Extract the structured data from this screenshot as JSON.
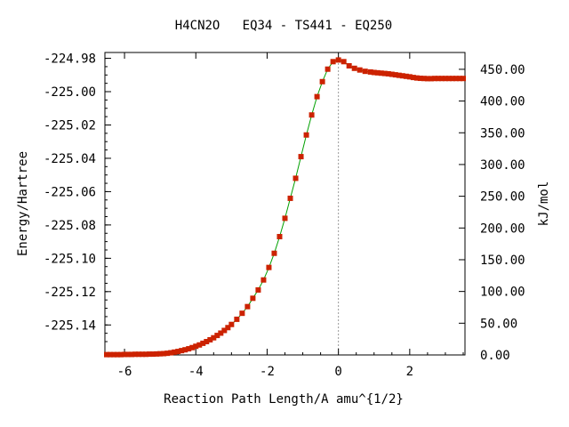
{
  "chart_data": {
    "type": "line",
    "title": "H4CN2O   EQ34 - TS441 - EQ250",
    "xlabel": "Reaction Path Length/A amu^{1/2}",
    "ylabel": "Energy/Hartree",
    "y2label": "kJ/mol",
    "xlim": [
      -6.55,
      3.55
    ],
    "ylim": [
      -225.158,
      -224.9765
    ],
    "y2lim": [
      0.0,
      476.5
    ],
    "x_ticks": [
      -6,
      -4,
      -2,
      0,
      2
    ],
    "y_ticks": [
      -224.98,
      -225.0,
      -225.02,
      -225.04,
      -225.06,
      -225.08,
      -225.1,
      -225.12,
      -225.14
    ],
    "y2_ticks": [
      0.0,
      50.0,
      100.0,
      150.0,
      200.0,
      250.0,
      300.0,
      350.0,
      400.0,
      450.0
    ],
    "reference_line_x": 0,
    "grid": false,
    "line_color": "#00a000",
    "marker_color": "#cc2200",
    "series": [
      {
        "x": [
          -6.5,
          -6.4,
          -6.3,
          -6.2,
          -6.1,
          -6.0,
          -5.9,
          -5.8,
          -5.7,
          -5.6,
          -5.5,
          -5.4,
          -5.3,
          -5.2,
          -5.1,
          -5.0,
          -4.9,
          -4.8,
          -4.7,
          -4.6,
          -4.5,
          -4.4,
          -4.3,
          -4.2,
          -4.1,
          -4.0,
          -3.9,
          -3.8,
          -3.7,
          -3.6,
          -3.5,
          -3.4,
          -3.3,
          -3.2,
          -3.1,
          -3.0,
          -2.85,
          -2.7,
          -2.55,
          -2.4,
          -2.25,
          -2.1,
          -1.95,
          -1.8,
          -1.65,
          -1.5,
          -1.35,
          -1.2,
          -1.05,
          -0.9,
          -0.75,
          -0.6,
          -0.45,
          -0.3,
          -0.15,
          0.0,
          0.15,
          0.3,
          0.45,
          0.6,
          0.75,
          0.9,
          1.0,
          1.1,
          1.2,
          1.3,
          1.4,
          1.5,
          1.6,
          1.7,
          1.8,
          1.9,
          2.0,
          2.1,
          2.2,
          2.3,
          2.4,
          2.5,
          2.6,
          2.7,
          2.8,
          2.9,
          3.0,
          3.1,
          3.2,
          3.3,
          3.4,
          3.5
        ],
        "y": [
          -225.1578,
          -225.1578,
          -225.1578,
          -225.1578,
          -225.1578,
          -225.1577,
          -225.1577,
          -225.1577,
          -225.1576,
          -225.1576,
          -225.1576,
          -225.1576,
          -225.1575,
          -225.1575,
          -225.1574,
          -225.1573,
          -225.1572,
          -225.157,
          -225.1567,
          -225.1563,
          -225.1559,
          -225.1554,
          -225.1549,
          -225.1543,
          -225.1536,
          -225.1528,
          -225.152,
          -225.151,
          -225.15,
          -225.1489,
          -225.1477,
          -225.1463,
          -225.1449,
          -225.1433,
          -225.1416,
          -225.1397,
          -225.1366,
          -225.133,
          -225.129,
          -225.124,
          -225.119,
          -225.113,
          -225.1055,
          -225.097,
          -225.087,
          -225.076,
          -225.064,
          -225.052,
          -225.039,
          -225.026,
          -225.014,
          -225.003,
          -224.994,
          -224.9865,
          -224.982,
          -224.981,
          -224.982,
          -224.9845,
          -224.986,
          -224.987,
          -224.9878,
          -224.9882,
          -224.9885,
          -224.9887,
          -224.9889,
          -224.9891,
          -224.9893,
          -224.9896,
          -224.9899,
          -224.9902,
          -224.9905,
          -224.9908,
          -224.9911,
          -224.9915,
          -224.9918,
          -224.992,
          -224.9921,
          -224.9922,
          -224.9922,
          -224.9921,
          -224.9921,
          -224.9921,
          -224.9921,
          -224.9921,
          -224.9921,
          -224.9921,
          -224.9921,
          -224.9921
        ]
      }
    ]
  }
}
